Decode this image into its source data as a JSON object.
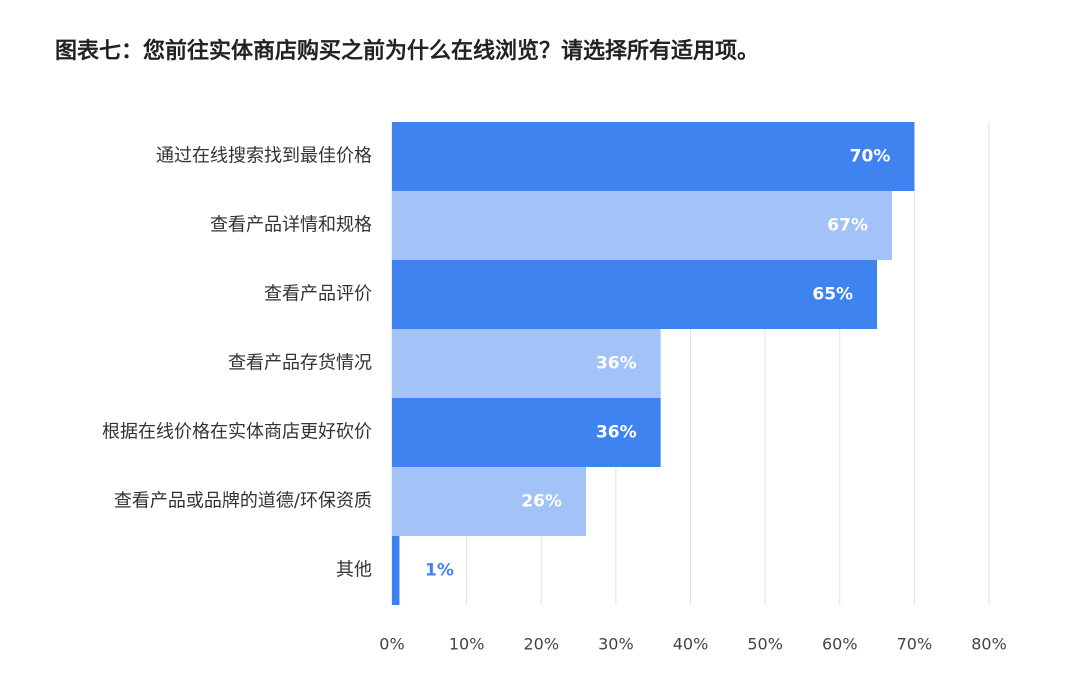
{
  "chart_data": {
    "type": "hbar",
    "title": "图表七：您前往实体商店购买之前为什么在线浏览？请选择所有适用项。",
    "categories": [
      "通过在线搜索找到最佳价格",
      "查看产品详情和规格",
      "查看产品评价",
      "查看产品存货情况",
      "根据在线价格在实体商店更好砍价",
      "查看产品或品牌的道德/环保资质",
      "其他"
    ],
    "values": [
      70,
      67,
      65,
      36,
      36,
      26,
      1
    ],
    "value_labels": [
      "70%",
      "67%",
      "65%",
      "36%",
      "36%",
      "26%",
      "1%"
    ],
    "colors": [
      "#3f83f1",
      "#a3c2f8",
      "#3f83f1",
      "#a3c2f8",
      "#3f83f1",
      "#a3c2f8",
      "#3f83f1"
    ],
    "xlim": [
      0,
      80
    ],
    "xticks": [
      {
        "value": 0,
        "label": "0%"
      },
      {
        "value": 10,
        "label": "10%"
      },
      {
        "value": 20,
        "label": "20%"
      },
      {
        "value": 30,
        "label": "30%"
      },
      {
        "value": 40,
        "label": "40%"
      },
      {
        "value": 50,
        "label": "50%"
      },
      {
        "value": 60,
        "label": "60%"
      },
      {
        "value": 70,
        "label": "70%"
      },
      {
        "value": 80,
        "label": "80%"
      }
    ],
    "grid": true
  }
}
